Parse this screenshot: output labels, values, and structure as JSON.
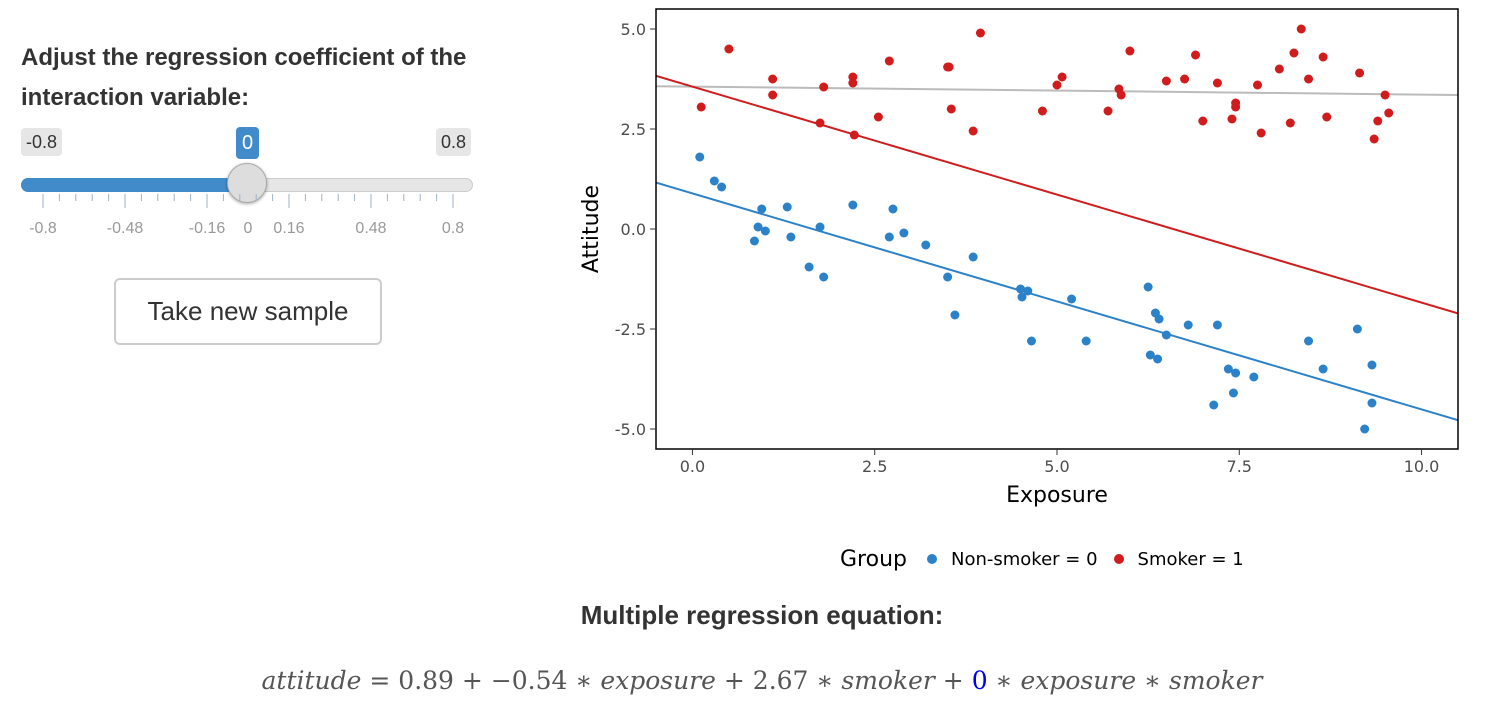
{
  "slider": {
    "title": "Adjust the regression coefficient of the interaction variable:",
    "min_label": "-0.8",
    "max_label": "0.8",
    "value_label": "0",
    "value": 0,
    "min": -0.8,
    "max": 0.8,
    "tick_labels": [
      "-0.8",
      "-0.48",
      "-0.16",
      "0",
      "0.16",
      "0.48",
      "0.8"
    ],
    "accent_color": "#428bca"
  },
  "sample_button": {
    "label": "Take new sample"
  },
  "chart_data": {
    "type": "scatter",
    "title": "",
    "xlabel": "Exposure",
    "ylabel": "Attitude",
    "xlim": [
      -0.5,
      10.5
    ],
    "ylim": [
      -5.5,
      5.5
    ],
    "x_ticks": [
      "0.0",
      "2.5",
      "5.0",
      "7.5",
      "10.0"
    ],
    "y_ticks": [
      "-5.0",
      "-2.5",
      "0.0",
      "2.5",
      "5.0"
    ],
    "grid": false,
    "legend_position": "bottom",
    "legend_title": "Group",
    "series": [
      {
        "name": "Non-smoker = 0",
        "color": "#2c82c9",
        "points": [
          [
            0.1,
            1.8
          ],
          [
            0.3,
            1.2
          ],
          [
            0.4,
            1.05
          ],
          [
            0.85,
            -0.3
          ],
          [
            0.9,
            0.05
          ],
          [
            0.95,
            0.5
          ],
          [
            1.0,
            -0.05
          ],
          [
            1.3,
            0.55
          ],
          [
            1.35,
            -0.2
          ],
          [
            1.6,
            -0.95
          ],
          [
            1.75,
            0.05
          ],
          [
            1.8,
            -1.2
          ],
          [
            2.2,
            0.6
          ],
          [
            2.7,
            -0.2
          ],
          [
            2.75,
            0.5
          ],
          [
            2.9,
            -0.1
          ],
          [
            3.2,
            -0.4
          ],
          [
            3.5,
            -1.2
          ],
          [
            3.6,
            -2.15
          ],
          [
            3.85,
            -0.7
          ],
          [
            4.5,
            -1.5
          ],
          [
            4.52,
            -1.7
          ],
          [
            4.6,
            -1.55
          ],
          [
            4.65,
            -2.8
          ],
          [
            5.2,
            -1.75
          ],
          [
            5.4,
            -2.8
          ],
          [
            6.25,
            -1.45
          ],
          [
            6.28,
            -3.15
          ],
          [
            6.35,
            -2.1
          ],
          [
            6.38,
            -3.25
          ],
          [
            6.4,
            -2.25
          ],
          [
            6.5,
            -2.65
          ],
          [
            6.8,
            -2.4
          ],
          [
            7.15,
            -4.4
          ],
          [
            7.2,
            -2.4
          ],
          [
            7.35,
            -3.5
          ],
          [
            7.42,
            -4.1
          ],
          [
            7.45,
            -3.6
          ],
          [
            7.7,
            -3.7
          ],
          [
            8.45,
            -2.8
          ],
          [
            8.65,
            -3.5
          ],
          [
            9.12,
            -2.5
          ],
          [
            9.22,
            -5.0
          ],
          [
            9.32,
            -3.4
          ],
          [
            9.32,
            -4.35
          ]
        ],
        "fit": {
          "intercept": 0.89,
          "slope": -0.54
        }
      },
      {
        "name": "Smoker = 1",
        "color": "#d01c1c",
        "points": [
          [
            0.12,
            3.05
          ],
          [
            0.5,
            4.5
          ],
          [
            1.1,
            3.35
          ],
          [
            1.1,
            3.75
          ],
          [
            1.75,
            2.65
          ],
          [
            1.8,
            3.55
          ],
          [
            2.2,
            3.8
          ],
          [
            2.2,
            3.65
          ],
          [
            2.22,
            2.35
          ],
          [
            2.55,
            2.8
          ],
          [
            2.7,
            4.2
          ],
          [
            3.5,
            4.05
          ],
          [
            3.52,
            4.05
          ],
          [
            3.55,
            3.0
          ],
          [
            3.85,
            2.45
          ],
          [
            3.95,
            4.9
          ],
          [
            4.8,
            2.95
          ],
          [
            5.0,
            3.6
          ],
          [
            5.07,
            3.8
          ],
          [
            5.7,
            2.95
          ],
          [
            5.85,
            3.5
          ],
          [
            5.88,
            3.35
          ],
          [
            6.0,
            4.45
          ],
          [
            6.5,
            3.7
          ],
          [
            6.75,
            3.75
          ],
          [
            6.9,
            4.35
          ],
          [
            7.0,
            2.7
          ],
          [
            7.2,
            3.65
          ],
          [
            7.4,
            2.75
          ],
          [
            7.45,
            3.15
          ],
          [
            7.45,
            3.05
          ],
          [
            7.75,
            3.6
          ],
          [
            7.8,
            2.4
          ],
          [
            8.05,
            4.0
          ],
          [
            8.2,
            2.65
          ],
          [
            8.25,
            4.4
          ],
          [
            8.35,
            5.0
          ],
          [
            8.45,
            3.75
          ],
          [
            8.65,
            4.3
          ],
          [
            8.7,
            2.8
          ],
          [
            9.15,
            3.9
          ],
          [
            9.35,
            2.25
          ],
          [
            9.4,
            2.7
          ],
          [
            9.5,
            3.35
          ],
          [
            9.55,
            2.9
          ]
        ],
        "fit": {
          "intercept": 3.56,
          "slope": -0.54
        }
      }
    ],
    "reference_line": {
      "color": "#bbbbbb",
      "intercept": 3.56,
      "slope": -0.02
    }
  },
  "equation": {
    "title": "Multiple regression equation:",
    "lhs": "attitude",
    "intercept": "0.89",
    "exposure_coef": "−0.54",
    "smoker_coef": "2.67",
    "interaction_coef": "0",
    "var_exposure": "exposure",
    "var_smoker": "smoker",
    "highlight_color": "#0000ee"
  }
}
